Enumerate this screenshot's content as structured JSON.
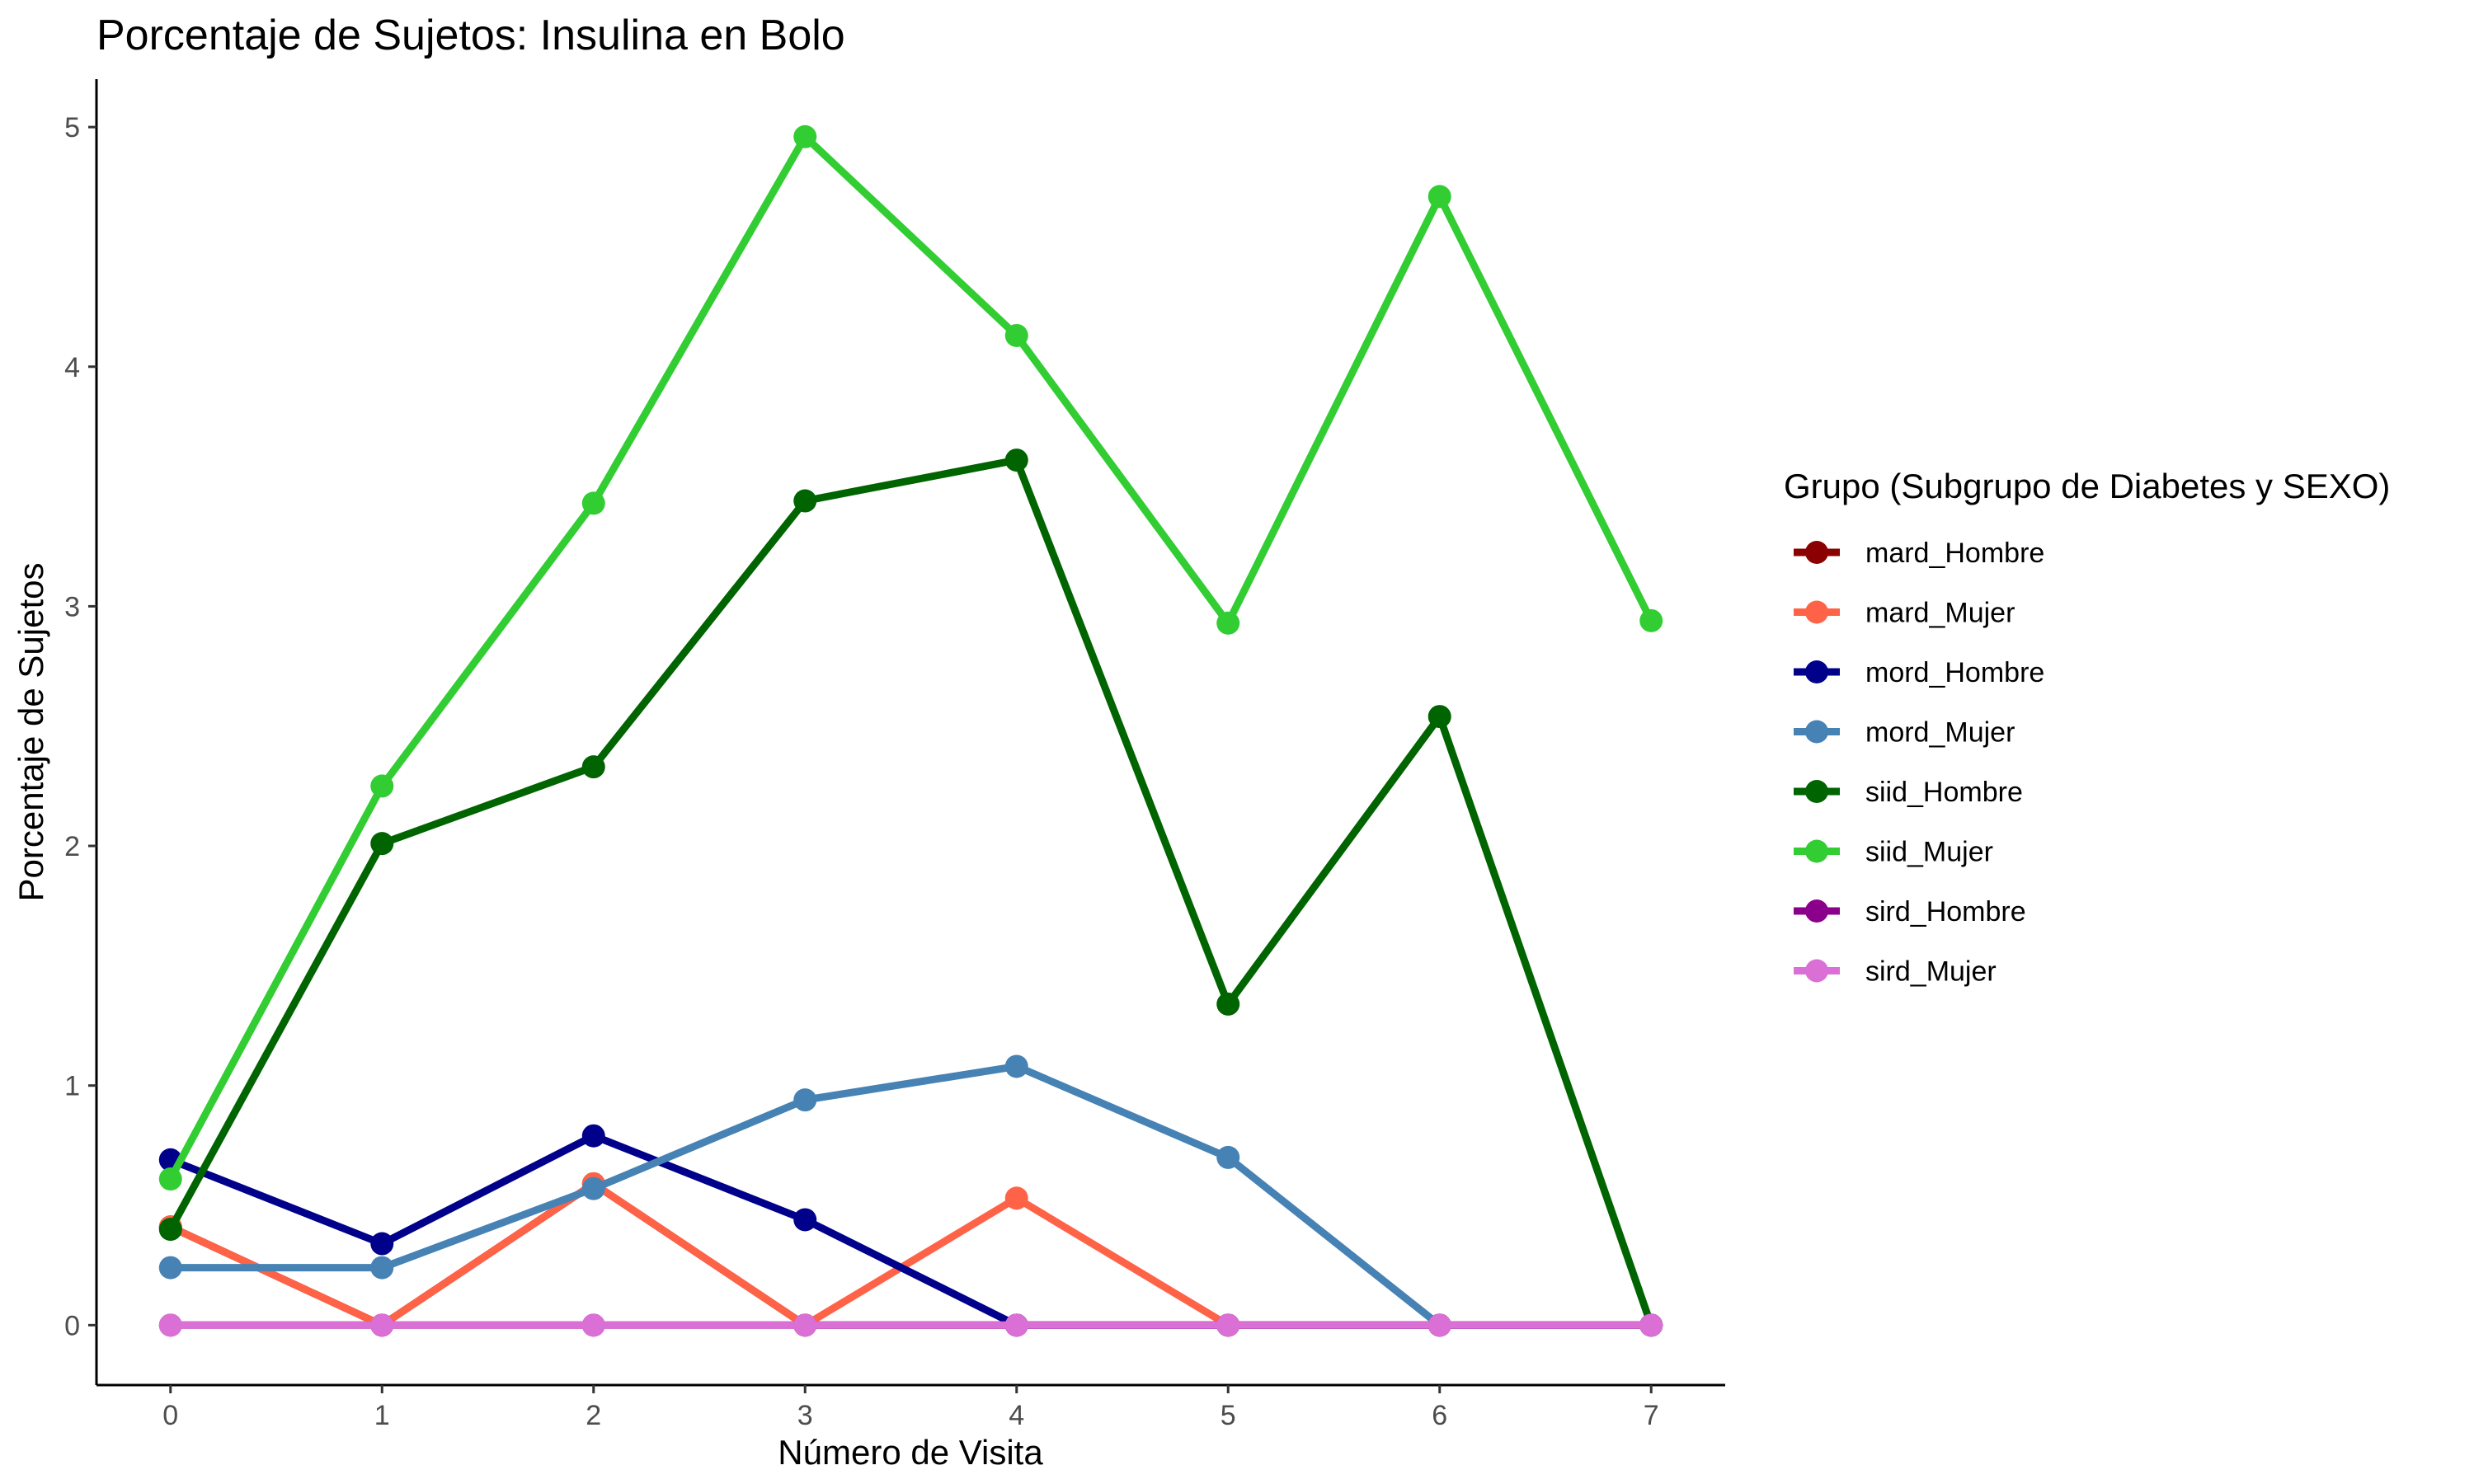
{
  "chart_data": {
    "type": "line",
    "title": "Porcentaje de Sujetos: Insulina en Bolo",
    "xlabel": "Número de Visita",
    "ylabel": "Porcentaje de Sujetos",
    "x": [
      0,
      1,
      2,
      3,
      4,
      5,
      6,
      7
    ],
    "x_ticks": [
      "0",
      "1",
      "2",
      "3",
      "4",
      "5",
      "6",
      "7"
    ],
    "y_ticks": [
      "0",
      "1",
      "2",
      "3",
      "4",
      "5"
    ],
    "xlim": [
      -0.35,
      7.35
    ],
    "ylim": [
      -0.25,
      5.2
    ],
    "grid": false,
    "legend_title": "Grupo (Subgrupo de Diabetes y SEXO)",
    "legend_position": "right",
    "series": [
      {
        "name": "mard_Hombre",
        "color": "#8B0000",
        "values": [
          0.41,
          0,
          0.59,
          0,
          0,
          0,
          0,
          0
        ]
      },
      {
        "name": "mard_Mujer",
        "color": "#FF6347",
        "values": [
          0.41,
          0,
          0.59,
          0,
          0.53,
          0,
          0,
          0
        ]
      },
      {
        "name": "mord_Hombre",
        "color": "#00008B",
        "values": [
          0.69,
          0.34,
          0.79,
          0.44,
          0,
          0,
          0,
          0
        ]
      },
      {
        "name": "mord_Mujer",
        "color": "#4682B4",
        "values": [
          0.24,
          0.24,
          0.57,
          0.94,
          1.08,
          0.7,
          0,
          0
        ]
      },
      {
        "name": "siid_Hombre",
        "color": "#006400",
        "values": [
          0.4,
          2.01,
          2.33,
          3.44,
          3.61,
          1.34,
          2.54,
          0
        ]
      },
      {
        "name": "siid_Mujer",
        "color": "#32CD32",
        "values": [
          0.61,
          2.25,
          3.43,
          4.96,
          4.13,
          2.93,
          4.71,
          2.94
        ]
      },
      {
        "name": "sird_Hombre",
        "color": "#8B008B",
        "values": [
          0,
          0,
          0,
          0,
          0,
          0,
          0,
          0
        ]
      },
      {
        "name": "sird_Mujer",
        "color": "#DA70D6",
        "values": [
          0,
          0,
          0,
          0,
          0,
          0,
          0,
          0
        ]
      }
    ]
  }
}
